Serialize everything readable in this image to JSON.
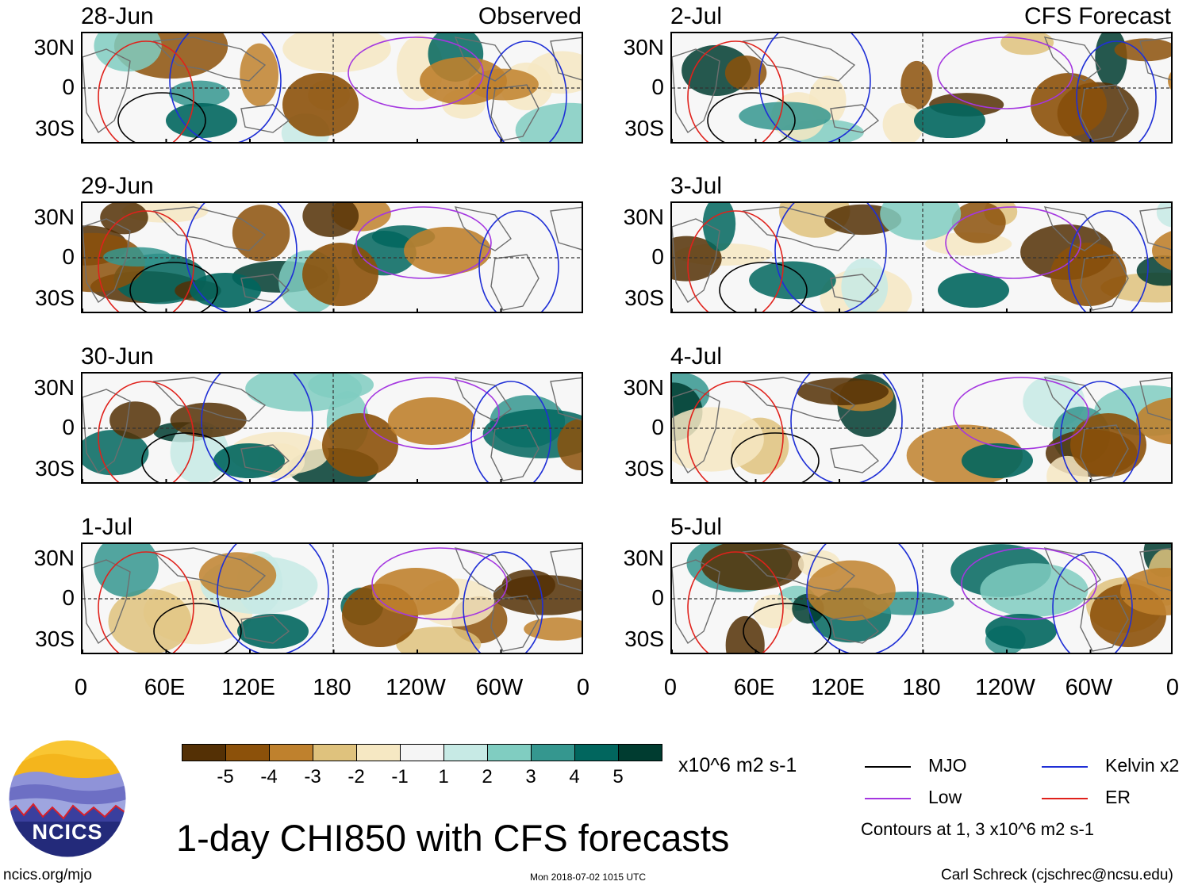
{
  "panels": [
    {
      "date": "28-Jun",
      "corner": "Observed"
    },
    {
      "date": "29-Jun",
      "corner": ""
    },
    {
      "date": "30-Jun",
      "corner": ""
    },
    {
      "date": "1-Jul",
      "corner": ""
    },
    {
      "date": "2-Jul",
      "corner": "CFS Forecast"
    },
    {
      "date": "3-Jul",
      "corner": ""
    },
    {
      "date": "4-Jul",
      "corner": ""
    },
    {
      "date": "5-Jul",
      "corner": ""
    }
  ],
  "lat_labels": [
    "30N",
    "0",
    "30S"
  ],
  "lon_labels": [
    "0",
    "60E",
    "120E",
    "180",
    "120W",
    "60W",
    "0"
  ],
  "colorbar": {
    "units": "x10^6 m2 s-1",
    "labels": [
      "-5",
      "-4",
      "-3",
      "-2",
      "-1",
      "1",
      "2",
      "3",
      "4",
      "5"
    ],
    "colors": [
      "#543005",
      "#8c510a",
      "#bf812d",
      "#dfc27d",
      "#f6e8c3",
      "#f5f5f5",
      "#c7eae5",
      "#80cdc1",
      "#35978f",
      "#01665e",
      "#003c30"
    ]
  },
  "legend": {
    "items": [
      {
        "label": "MJO",
        "color": "#000000"
      },
      {
        "label": "Kelvin x2",
        "color": "#1f2fd6"
      },
      {
        "label": "Low",
        "color": "#a436e0"
      },
      {
        "label": "ER",
        "color": "#e0211b"
      }
    ],
    "note": "Contours at 1, 3 x10^6 m2 s-1"
  },
  "title": "1-day CHI850 with CFS forecasts",
  "logo_text": "NCICS",
  "footer": {
    "left": "ncics.org/mjo",
    "center": "Mon 2018-07-02 1015 UTC",
    "right": "Carl Schreck (cjschrec@ncsu.edu)"
  }
}
